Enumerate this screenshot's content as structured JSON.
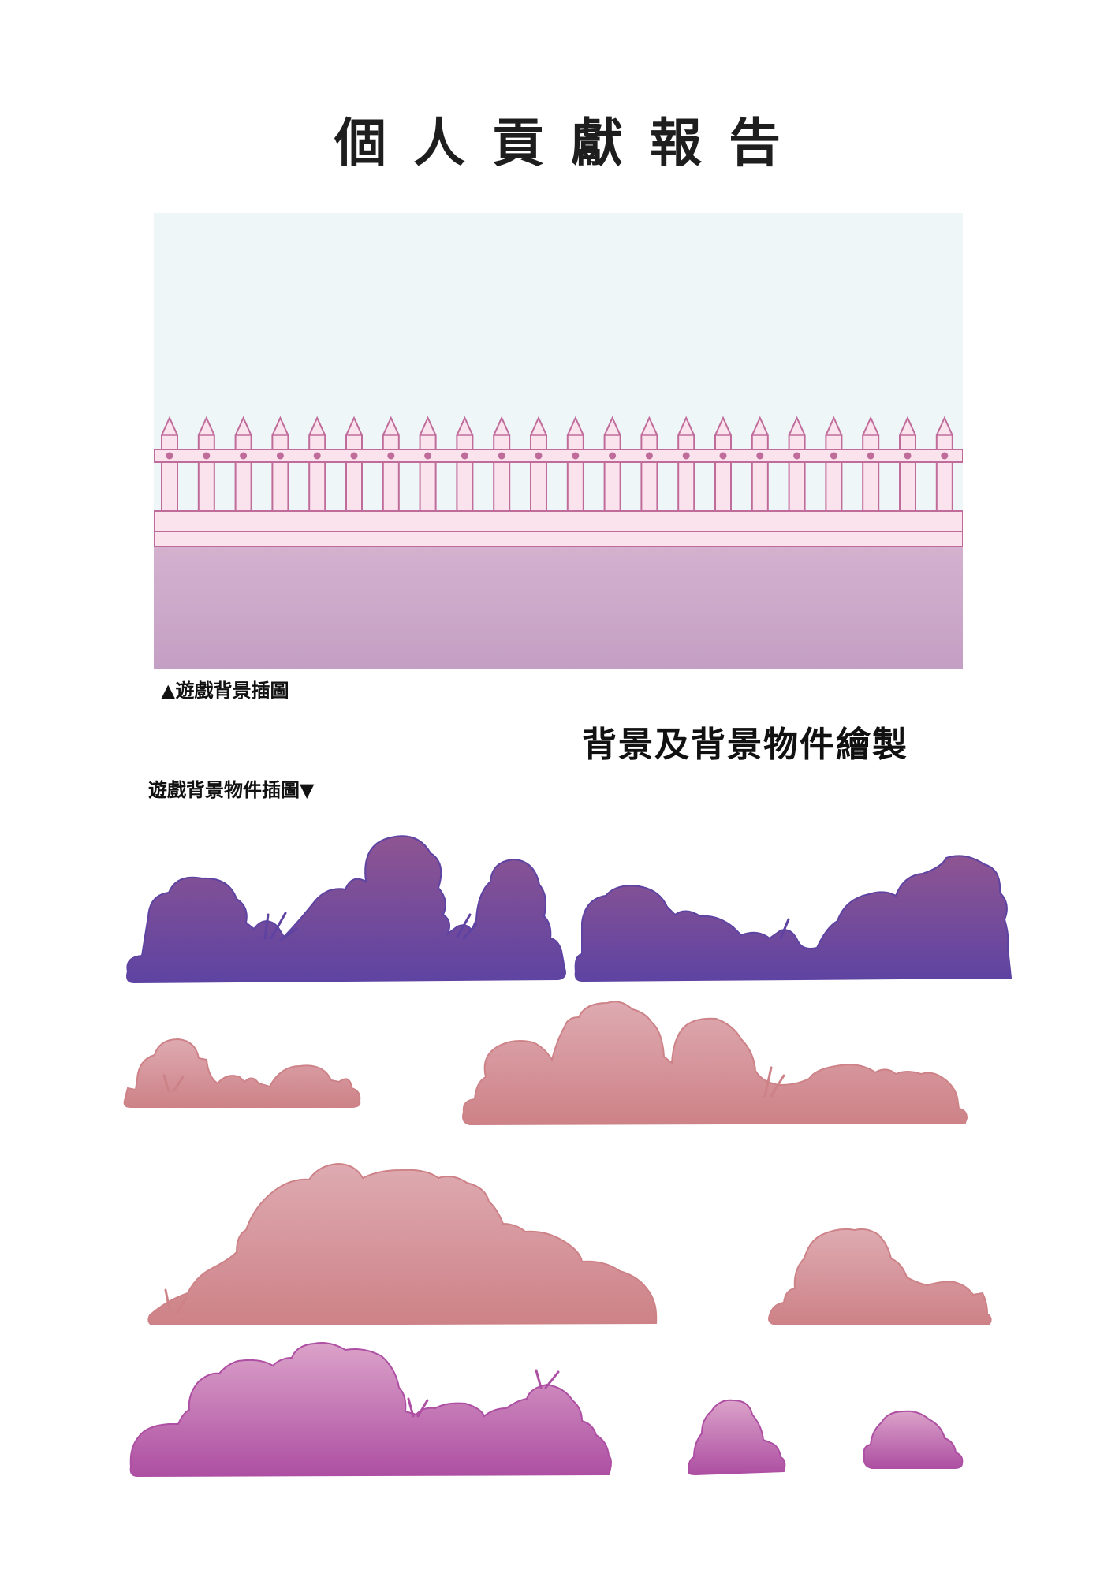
{
  "page": {
    "title": "個人貢獻報告"
  },
  "illustration": {
    "caption": "▲遊戲背景插圖",
    "colors": {
      "sky": "#eef6f8",
      "fence_fill": "#fbe3ee",
      "fence_stroke": "#c06c9a",
      "ground_top": "#d4b1cf",
      "ground_bottom": "#c49fc4"
    }
  },
  "section": {
    "heading": "背景及背景物件繪製"
  },
  "objects": {
    "caption": "遊戲背景物件插圖▼",
    "groups": [
      {
        "name": "purple-bushes",
        "count": 2,
        "color_top": "#8e5592",
        "color_bottom": "#5e43a2"
      },
      {
        "name": "salmon-bushes",
        "count": 4,
        "color_top": "#deaab1",
        "color_bottom": "#cd8287"
      },
      {
        "name": "pink-bushes",
        "count": 3,
        "color_top": "#dba2c9",
        "color_bottom": "#ad4fa2"
      }
    ]
  }
}
